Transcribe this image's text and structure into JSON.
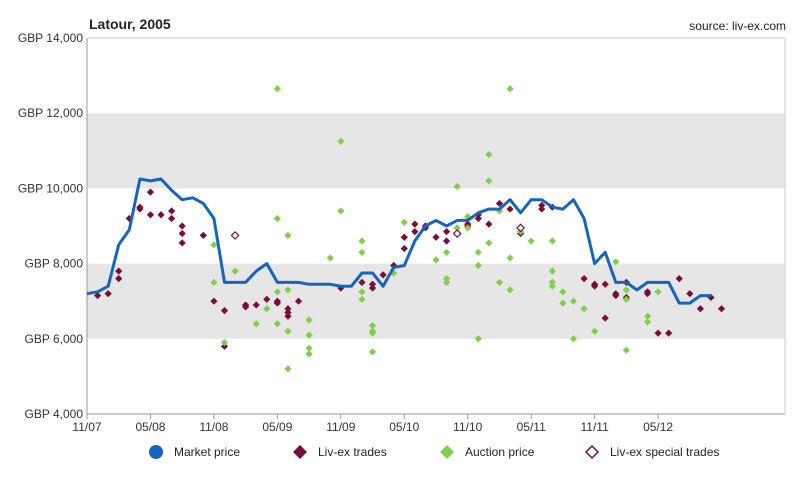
{
  "chart_title": "Latour, 2005",
  "source": "source: liv-ex.com",
  "legend": [
    {
      "label": "Market price",
      "icon": "circle",
      "color": "#1565c0"
    },
    {
      "label": "Liv-ex trades",
      "icon": "diamond",
      "color": "#7a0d38"
    },
    {
      "label": "Auction price",
      "icon": "diamond",
      "color": "#7ed04b"
    },
    {
      "label": "Liv-ex special trades",
      "icon": "diamond-outline",
      "color": "#7a0d38"
    }
  ],
  "chart_data": {
    "type": "line",
    "title": "Latour, 2005",
    "ylim": [
      4000,
      14000
    ],
    "y_ticks": [
      {
        "value": 4000,
        "label": "GBP 4,000"
      },
      {
        "value": 6000,
        "label": "GBP 6,000"
      },
      {
        "value": 8000,
        "label": "GBP 8,000"
      },
      {
        "value": 10000,
        "label": "GBP 10,000"
      },
      {
        "value": 12000,
        "label": "GBP 12,000"
      },
      {
        "value": 14000,
        "label": "GBP 14,000"
      }
    ],
    "x_range": [
      "2007-11",
      "2013-05"
    ],
    "x_ticks": [
      {
        "date": "2007-11",
        "label": "11/07"
      },
      {
        "date": "2008-05",
        "label": "05/08"
      },
      {
        "date": "2008-11",
        "label": "11/08"
      },
      {
        "date": "2009-05",
        "label": "05/09"
      },
      {
        "date": "2009-11",
        "label": "11/09"
      },
      {
        "date": "2010-05",
        "label": "05/10"
      },
      {
        "date": "2010-11",
        "label": "11/10"
      },
      {
        "date": "2011-05",
        "label": "05/11"
      },
      {
        "date": "2011-11",
        "label": "11/11"
      },
      {
        "date": "2012-05",
        "label": "05/12"
      }
    ],
    "band_colors": {
      "shaded": "#e6e6e6",
      "plain": "#ffffff"
    },
    "series": [
      {
        "name": "Market price",
        "kind": "line",
        "color": "#1565c0",
        "points": [
          [
            "2007-11",
            7200
          ],
          [
            "2007-12",
            7250
          ],
          [
            "2008-01",
            7400
          ],
          [
            "2008-02",
            8500
          ],
          [
            "2008-03",
            8900
          ],
          [
            "2008-04",
            10250
          ],
          [
            "2008-05",
            10200
          ],
          [
            "2008-06",
            10250
          ],
          [
            "2008-07",
            9950
          ],
          [
            "2008-08",
            9700
          ],
          [
            "2008-09",
            9750
          ],
          [
            "2008-10",
            9600
          ],
          [
            "2008-11",
            9200
          ],
          [
            "2008-12",
            7500
          ],
          [
            "2009-01",
            7500
          ],
          [
            "2009-02",
            7500
          ],
          [
            "2009-03",
            7800
          ],
          [
            "2009-04",
            8000
          ],
          [
            "2009-05",
            7500
          ],
          [
            "2009-06",
            7500
          ],
          [
            "2009-07",
            7500
          ],
          [
            "2009-08",
            7450
          ],
          [
            "2009-09",
            7450
          ],
          [
            "2009-10",
            7450
          ],
          [
            "2009-11",
            7400
          ],
          [
            "2009-12",
            7400
          ],
          [
            "2010-01",
            7750
          ],
          [
            "2010-02",
            7750
          ],
          [
            "2010-03",
            7400
          ],
          [
            "2010-04",
            7900
          ],
          [
            "2010-05",
            7950
          ],
          [
            "2010-06",
            8600
          ],
          [
            "2010-07",
            9000
          ],
          [
            "2010-08",
            9150
          ],
          [
            "2010-09",
            9000
          ],
          [
            "2010-10",
            9150
          ],
          [
            "2010-11",
            9150
          ],
          [
            "2010-12",
            9350
          ],
          [
            "2011-01",
            9450
          ],
          [
            "2011-02",
            9450
          ],
          [
            "2011-03",
            9700
          ],
          [
            "2011-04",
            9350
          ],
          [
            "2011-05",
            9700
          ],
          [
            "2011-06",
            9700
          ],
          [
            "2011-07",
            9500
          ],
          [
            "2011-08",
            9450
          ],
          [
            "2011-09",
            9700
          ],
          [
            "2011-10",
            9200
          ],
          [
            "2011-11",
            8000
          ],
          [
            "2011-12",
            8300
          ],
          [
            "2012-01",
            7500
          ],
          [
            "2012-02",
            7500
          ],
          [
            "2012-03",
            7300
          ],
          [
            "2012-04",
            7500
          ],
          [
            "2012-05",
            7500
          ],
          [
            "2012-06",
            7500
          ],
          [
            "2012-07",
            6950
          ],
          [
            "2012-08",
            6950
          ],
          [
            "2012-09",
            7150
          ],
          [
            "2012-10",
            7150
          ]
        ]
      },
      {
        "name": "Liv-ex trades",
        "kind": "diamond",
        "color": "#7a0d38",
        "points": [
          [
            "2007-12",
            7150
          ],
          [
            "2008-01",
            7200
          ],
          [
            "2008-02",
            7800
          ],
          [
            "2008-02",
            7600
          ],
          [
            "2008-03",
            9200
          ],
          [
            "2008-04",
            9500
          ],
          [
            "2008-04",
            9450
          ],
          [
            "2008-05",
            9900
          ],
          [
            "2008-05",
            9300
          ],
          [
            "2008-06",
            9300
          ],
          [
            "2008-07",
            9400
          ],
          [
            "2008-07",
            9200
          ],
          [
            "2008-08",
            9000
          ],
          [
            "2008-08",
            8800
          ],
          [
            "2008-08",
            8550
          ],
          [
            "2008-10",
            8750
          ],
          [
            "2008-11",
            7000
          ],
          [
            "2008-12",
            6750
          ],
          [
            "2008-12",
            5800
          ],
          [
            "2009-02",
            6900
          ],
          [
            "2009-02",
            6850
          ],
          [
            "2009-03",
            6900
          ],
          [
            "2009-04",
            7050
          ],
          [
            "2009-05",
            6950
          ],
          [
            "2009-05",
            7000
          ],
          [
            "2009-06",
            6700
          ],
          [
            "2009-06",
            6800
          ],
          [
            "2009-06",
            6600
          ],
          [
            "2009-07",
            7000
          ],
          [
            "2009-11",
            7350
          ],
          [
            "2010-01",
            7500
          ],
          [
            "2010-02",
            7350
          ],
          [
            "2010-02",
            7450
          ],
          [
            "2010-03",
            7700
          ],
          [
            "2010-04",
            7950
          ],
          [
            "2010-05",
            8400
          ],
          [
            "2010-05",
            8700
          ],
          [
            "2010-06",
            9050
          ],
          [
            "2010-06",
            8850
          ],
          [
            "2010-07",
            9000
          ],
          [
            "2010-07",
            8950
          ],
          [
            "2010-08",
            8700
          ],
          [
            "2010-09",
            8600
          ],
          [
            "2010-09",
            8850
          ],
          [
            "2010-10",
            8800
          ],
          [
            "2010-11",
            9000
          ],
          [
            "2010-11",
            9050
          ],
          [
            "2010-12",
            9200
          ],
          [
            "2010-12",
            9300
          ],
          [
            "2011-01",
            9050
          ],
          [
            "2011-02",
            9600
          ],
          [
            "2011-03",
            9450
          ],
          [
            "2011-04",
            8800
          ],
          [
            "2011-06",
            9550
          ],
          [
            "2011-06",
            9450
          ],
          [
            "2011-07",
            9500
          ],
          [
            "2011-10",
            7600
          ],
          [
            "2011-11",
            7400
          ],
          [
            "2011-11",
            7450
          ],
          [
            "2011-12",
            7450
          ],
          [
            "2011-12",
            6550
          ],
          [
            "2012-01",
            7150
          ],
          [
            "2012-01",
            7200
          ],
          [
            "2012-02",
            7500
          ],
          [
            "2012-02",
            7100
          ],
          [
            "2012-04",
            7200
          ],
          [
            "2012-04",
            7250
          ],
          [
            "2012-05",
            6150
          ],
          [
            "2012-06",
            6150
          ],
          [
            "2012-07",
            7600
          ],
          [
            "2012-08",
            7200
          ],
          [
            "2012-09",
            6800
          ],
          [
            "2012-10",
            7100
          ],
          [
            "2012-11",
            6800
          ]
        ]
      },
      {
        "name": "Auction price",
        "kind": "diamond",
        "color": "#7ed04b",
        "points": [
          [
            "2008-11",
            8500
          ],
          [
            "2008-11",
            7500
          ],
          [
            "2008-12",
            5900
          ],
          [
            "2009-01",
            7800
          ],
          [
            "2009-03",
            6400
          ],
          [
            "2009-04",
            6800
          ],
          [
            "2009-05",
            9200
          ],
          [
            "2009-05",
            7250
          ],
          [
            "2009-05",
            6400
          ],
          [
            "2009-05",
            12650
          ],
          [
            "2009-06",
            8750
          ],
          [
            "2009-06",
            7300
          ],
          [
            "2009-06",
            6200
          ],
          [
            "2009-06",
            5200
          ],
          [
            "2009-08",
            6500
          ],
          [
            "2009-08",
            6100
          ],
          [
            "2009-08",
            5750
          ],
          [
            "2009-08",
            5600
          ],
          [
            "2009-10",
            8150
          ],
          [
            "2009-11",
            11250
          ],
          [
            "2009-11",
            9400
          ],
          [
            "2010-01",
            8600
          ],
          [
            "2010-01",
            8300
          ],
          [
            "2010-01",
            7250
          ],
          [
            "2010-01",
            7050
          ],
          [
            "2010-02",
            6350
          ],
          [
            "2010-02",
            6200
          ],
          [
            "2010-02",
            5650
          ],
          [
            "2010-02",
            6150
          ],
          [
            "2010-04",
            7750
          ],
          [
            "2010-05",
            9100
          ],
          [
            "2010-08",
            8100
          ],
          [
            "2010-09",
            8300
          ],
          [
            "2010-09",
            7600
          ],
          [
            "2010-09",
            7500
          ],
          [
            "2010-10",
            10050
          ],
          [
            "2010-10",
            8950
          ],
          [
            "2010-11",
            9250
          ],
          [
            "2010-11",
            8950
          ],
          [
            "2010-12",
            8300
          ],
          [
            "2010-12",
            7950
          ],
          [
            "2010-12",
            6000
          ],
          [
            "2011-01",
            10900
          ],
          [
            "2011-01",
            10200
          ],
          [
            "2011-01",
            8550
          ],
          [
            "2011-02",
            9400
          ],
          [
            "2011-02",
            7500
          ],
          [
            "2011-03",
            12650
          ],
          [
            "2011-03",
            8150
          ],
          [
            "2011-03",
            7300
          ],
          [
            "2011-04",
            8850
          ],
          [
            "2011-05",
            8600
          ],
          [
            "2011-07",
            8600
          ],
          [
            "2011-07",
            7800
          ],
          [
            "2011-07",
            7500
          ],
          [
            "2011-07",
            7400
          ],
          [
            "2011-08",
            7250
          ],
          [
            "2011-08",
            6950
          ],
          [
            "2011-09",
            7000
          ],
          [
            "2011-09",
            6000
          ],
          [
            "2011-10",
            6800
          ],
          [
            "2011-11",
            6200
          ],
          [
            "2012-01",
            8050
          ],
          [
            "2012-02",
            7300
          ],
          [
            "2012-02",
            7050
          ],
          [
            "2012-02",
            5700
          ],
          [
            "2012-04",
            6600
          ],
          [
            "2012-04",
            6450
          ],
          [
            "2012-05",
            7250
          ]
        ]
      },
      {
        "name": "Liv-ex special trades",
        "kind": "diamond-outline",
        "color": "#7a0d38",
        "points": [
          [
            "2009-01",
            8750
          ],
          [
            "2010-10",
            8800
          ],
          [
            "2011-04",
            8950
          ]
        ]
      }
    ]
  }
}
